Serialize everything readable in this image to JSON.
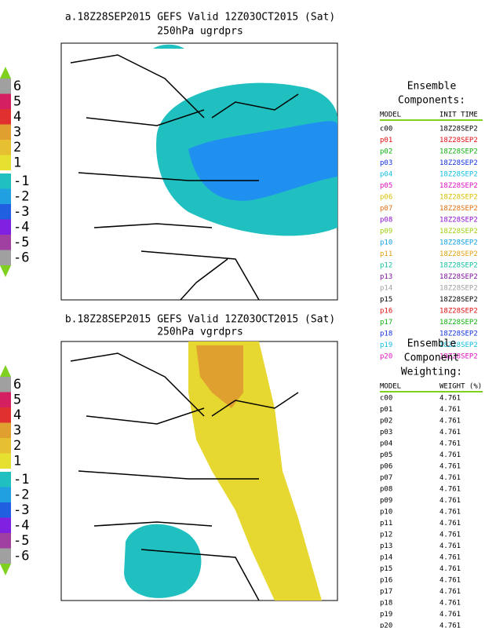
{
  "panels": [
    {
      "title": "a.18Z28SEP2015 GEFS Valid 12Z03OCT2015 (Sat)",
      "subtitle": "250hPa ugrdprs",
      "colorbar": [
        "6",
        "5",
        "4",
        "3",
        "2",
        "1",
        "-1",
        "-2",
        "-3",
        "-4",
        "-5",
        "-6"
      ]
    },
    {
      "title": "b.18Z28SEP2015 GEFS Valid 12Z03OCT2015 (Sat)",
      "subtitle": "250hPa vgrdprs",
      "colorbar": [
        "6",
        "5",
        "4",
        "3",
        "2",
        "1",
        "-1",
        "-2",
        "-3",
        "-4",
        "-5",
        "-6"
      ]
    }
  ],
  "components": {
    "title": [
      "Ensemble",
      "Components:"
    ],
    "headers": [
      "MODEL",
      "INIT TIME"
    ],
    "rows": [
      {
        "model": "c00",
        "init": "18Z28SEP2",
        "color": "#000000"
      },
      {
        "model": "p01",
        "init": "18Z28SEP2",
        "color": "#e01010"
      },
      {
        "model": "p02",
        "init": "18Z28SEP2",
        "color": "#10b010"
      },
      {
        "model": "p03",
        "init": "18Z28SEP2",
        "color": "#1030e0"
      },
      {
        "model": "p04",
        "init": "18Z28SEP2",
        "color": "#10c0e0"
      },
      {
        "model": "p05",
        "init": "18Z28SEP2",
        "color": "#e010c0"
      },
      {
        "model": "p06",
        "init": "18Z28SEP2",
        "color": "#d8c000"
      },
      {
        "model": "p07",
        "init": "18Z28SEP2",
        "color": "#e07010"
      },
      {
        "model": "p08",
        "init": "18Z28SEP2",
        "color": "#9010d0"
      },
      {
        "model": "p09",
        "init": "18Z28SEP2",
        "color": "#a0d010"
      },
      {
        "model": "p10",
        "init": "18Z28SEP2",
        "color": "#10a0e0"
      },
      {
        "model": "p11",
        "init": "18Z28SEP2",
        "color": "#e0a010"
      },
      {
        "model": "p12",
        "init": "18Z28SEP2",
        "color": "#10c0a0"
      },
      {
        "model": "p13",
        "init": "18Z28SEP2",
        "color": "#8010a0"
      },
      {
        "model": "p14",
        "init": "18Z28SEP2",
        "color": "#a0a0a0"
      },
      {
        "model": "p15",
        "init": "18Z28SEP2",
        "color": "#000000"
      },
      {
        "model": "p16",
        "init": "18Z28SEP2",
        "color": "#e01010"
      },
      {
        "model": "p17",
        "init": "18Z28SEP2",
        "color": "#10b010"
      },
      {
        "model": "p18",
        "init": "18Z28SEP2",
        "color": "#1030e0"
      },
      {
        "model": "p19",
        "init": "18Z28SEP2",
        "color": "#10c0e0"
      },
      {
        "model": "p20",
        "init": "18Z28SEP2",
        "color": "#e010c0"
      }
    ]
  },
  "weighting": {
    "title": [
      "Ensemble",
      "Component",
      "Weighting:"
    ],
    "headers": [
      "MODEL",
      "WEIGHT (%)"
    ],
    "rows": [
      [
        "c00",
        "4.761"
      ],
      [
        "p01",
        "4.761"
      ],
      [
        "p02",
        "4.761"
      ],
      [
        "p03",
        "4.761"
      ],
      [
        "p04",
        "4.761"
      ],
      [
        "p05",
        "4.761"
      ],
      [
        "p06",
        "4.761"
      ],
      [
        "p07",
        "4.761"
      ],
      [
        "p08",
        "4.761"
      ],
      [
        "p09",
        "4.761"
      ],
      [
        "p10",
        "4.761"
      ],
      [
        "p11",
        "4.761"
      ],
      [
        "p12",
        "4.761"
      ],
      [
        "p13",
        "4.761"
      ],
      [
        "p14",
        "4.761"
      ],
      [
        "p15",
        "4.761"
      ],
      [
        "p16",
        "4.761"
      ],
      [
        "p17",
        "4.761"
      ],
      [
        "p18",
        "4.761"
      ],
      [
        "p19",
        "4.761"
      ],
      [
        "p20",
        "4.761"
      ]
    ]
  }
}
